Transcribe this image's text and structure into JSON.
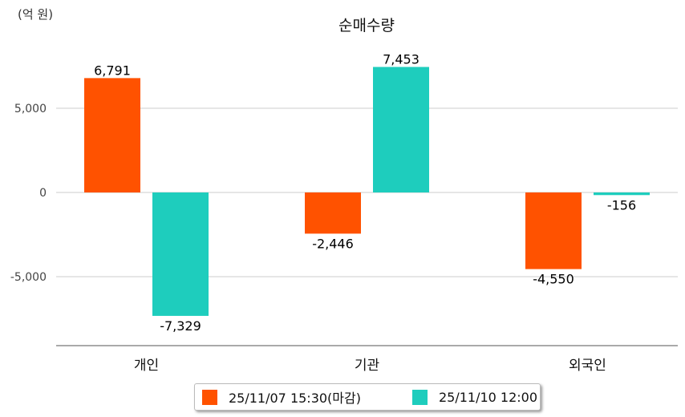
{
  "chart_data": {
    "type": "bar",
    "title": "순매수량",
    "ylabel": "(억 원)",
    "xlabel": "",
    "categories": [
      "개인",
      "기관",
      "외국인"
    ],
    "series": [
      {
        "name": "25/11/07 15:30(마감)",
        "color": "#ff5200",
        "values": [
          6791,
          -2446,
          -4550
        ],
        "labels": [
          "6,791",
          "-2,446",
          "-4,550"
        ]
      },
      {
        "name": "25/11/10 12:00",
        "color": "#1ecdbd",
        "values": [
          -7329,
          7453,
          -156
        ],
        "labels": [
          "-7,329",
          "7,453",
          "-156"
        ]
      }
    ],
    "yticks": [
      5000,
      0,
      -5000
    ],
    "ytick_labels": [
      "5,000",
      "0",
      "-5,000"
    ],
    "ylim": [
      -9000,
      9000
    ],
    "grid": true,
    "legend": "bottom"
  }
}
